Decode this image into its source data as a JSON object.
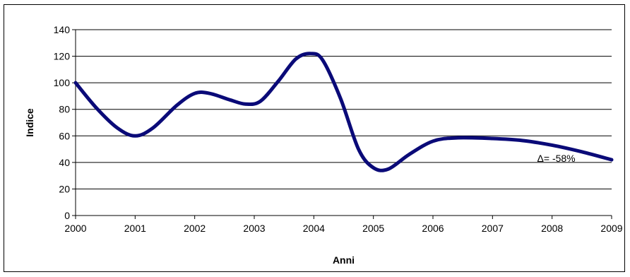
{
  "chart_data": {
    "type": "line",
    "title": "",
    "xlabel": "Anni",
    "ylabel": "Indice",
    "ylim": [
      0,
      140
    ],
    "y_ticks": [
      0,
      20,
      40,
      60,
      80,
      100,
      120,
      140
    ],
    "x_ticks": [
      2000,
      2001,
      2002,
      2003,
      2004,
      2005,
      2006,
      2007,
      2008,
      2009
    ],
    "grid": "horizontal",
    "legend": "none",
    "series": [
      {
        "color": "#0a0a78",
        "points": [
          [
            2000,
            100
          ],
          [
            2000.35,
            81
          ],
          [
            2000.7,
            66
          ],
          [
            2001,
            60
          ],
          [
            2001.3,
            66
          ],
          [
            2001.7,
            83
          ],
          [
            2002,
            92
          ],
          [
            2002.25,
            92
          ],
          [
            2002.6,
            87
          ],
          [
            2002.85,
            84
          ],
          [
            2003.1,
            86
          ],
          [
            2003.4,
            101
          ],
          [
            2003.7,
            118
          ],
          [
            2003.95,
            122
          ],
          [
            2004.15,
            117
          ],
          [
            2004.45,
            88
          ],
          [
            2004.75,
            50
          ],
          [
            2005,
            36
          ],
          [
            2005.25,
            35
          ],
          [
            2005.6,
            46
          ],
          [
            2006,
            56
          ],
          [
            2006.4,
            58.5
          ],
          [
            2007,
            58
          ],
          [
            2007.5,
            56.5
          ],
          [
            2008,
            53
          ],
          [
            2008.5,
            48
          ],
          [
            2009,
            42
          ]
        ]
      }
    ],
    "annotations": [
      {
        "text": "Δ= -58%",
        "x": 2008.2,
        "y": 43
      }
    ]
  }
}
